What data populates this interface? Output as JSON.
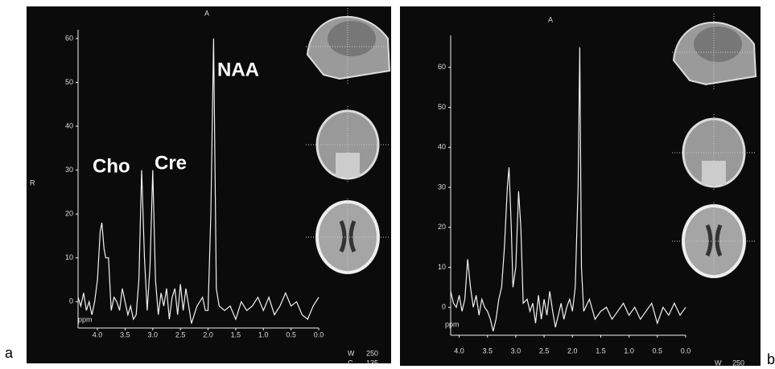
{
  "chart_data": [
    {
      "type": "line",
      "panel_label": "a",
      "color": "#f2f2f2",
      "background": "#0b0b0b",
      "top_label": "A",
      "side_label": "R",
      "x_unit": "ppm",
      "window_label": "W",
      "window_value": 250,
      "center_label": "C",
      "center_value": 135,
      "annotations": [
        "Cho",
        "Cre",
        "NAA"
      ],
      "xlim": [
        4.35,
        0.0
      ],
      "xticks": [
        {
          "value": 4.0,
          "label": "4.0"
        },
        3.5,
        {
          "value": 3.0,
          "label": "3.0"
        },
        2.5,
        {
          "value": 2.0,
          "label": "2.0"
        },
        1.5,
        {
          "value": 1.0,
          "label": "1.0"
        },
        0.5,
        {
          "value": 0.0,
          "label": "0.0"
        }
      ],
      "ylim": [
        -6,
        62
      ],
      "yticks": [
        0,
        10,
        20,
        30,
        40,
        50,
        60
      ],
      "x": [
        4.35,
        4.3,
        4.25,
        4.2,
        4.15,
        4.1,
        4.05,
        4.0,
        3.95,
        3.92,
        3.88,
        3.85,
        3.8,
        3.75,
        3.7,
        3.65,
        3.6,
        3.55,
        3.5,
        3.45,
        3.4,
        3.35,
        3.3,
        3.25,
        3.2,
        3.15,
        3.1,
        3.05,
        3.0,
        2.95,
        2.9,
        2.85,
        2.8,
        2.75,
        2.7,
        2.65,
        2.6,
        2.55,
        2.5,
        2.45,
        2.4,
        2.35,
        2.3,
        2.25,
        2.2,
        2.15,
        2.1,
        2.05,
        2.0,
        1.95,
        1.9,
        1.85,
        1.8,
        1.7,
        1.6,
        1.5,
        1.4,
        1.3,
        1.2,
        1.1,
        1.0,
        0.9,
        0.8,
        0.7,
        0.6,
        0.5,
        0.4,
        0.3,
        0.2,
        0.1,
        0.0
      ],
      "values": [
        1,
        -1,
        2,
        -2,
        0,
        -3,
        0,
        5,
        16,
        18,
        12,
        10,
        10,
        -2,
        1,
        0,
        -2,
        3,
        0,
        -3,
        -1,
        -4,
        -3,
        5,
        30,
        10,
        -2,
        8,
        30,
        5,
        -3,
        2,
        -1,
        3,
        -4,
        1,
        3,
        -3,
        4,
        -2,
        3,
        -1,
        -5,
        -3,
        -1,
        0,
        1,
        -2,
        -2,
        20,
        60,
        3,
        -1,
        -2,
        -1,
        -4,
        0,
        -2,
        -1,
        1,
        -2,
        1,
        -3,
        -1,
        2,
        -1,
        0,
        -3,
        -4,
        -1,
        1
      ]
    },
    {
      "type": "line",
      "panel_label": "b",
      "color": "#f2f2f2",
      "background": "#0b0b0b",
      "top_label": "A",
      "x_unit": "ppm",
      "window_label": "W",
      "window_value": 250,
      "xlim": [
        4.15,
        0.0
      ],
      "xticks": [
        {
          "value": 4.0,
          "label": "4.0"
        },
        3.5,
        {
          "value": 3.0,
          "label": "3.0"
        },
        2.5,
        {
          "value": 2.0,
          "label": "2.0"
        },
        1.5,
        {
          "value": 1.0,
          "label": "1.0"
        },
        0.5,
        {
          "value": 0.0,
          "label": "0.0"
        }
      ],
      "ylim": [
        -7,
        68
      ],
      "yticks": [
        0,
        10,
        20,
        30,
        40,
        50,
        60
      ],
      "x": [
        4.15,
        4.1,
        4.05,
        4.0,
        3.95,
        3.9,
        3.85,
        3.8,
        3.75,
        3.7,
        3.65,
        3.6,
        3.55,
        3.5,
        3.45,
        3.4,
        3.35,
        3.3,
        3.25,
        3.2,
        3.15,
        3.12,
        3.08,
        3.05,
        3.0,
        2.95,
        2.91,
        2.87,
        2.8,
        2.75,
        2.7,
        2.65,
        2.6,
        2.55,
        2.5,
        2.45,
        2.4,
        2.35,
        2.3,
        2.25,
        2.2,
        2.15,
        2.1,
        2.05,
        2.0,
        1.95,
        1.9,
        1.87,
        1.84,
        1.8,
        1.7,
        1.6,
        1.5,
        1.4,
        1.3,
        1.2,
        1.1,
        1.0,
        0.9,
        0.8,
        0.7,
        0.6,
        0.5,
        0.4,
        0.3,
        0.2,
        0.1,
        0.0
      ],
      "values": [
        4,
        1,
        0,
        3,
        -1,
        2,
        12,
        5,
        0,
        3,
        -2,
        2,
        0,
        -1,
        -3,
        -6,
        -3,
        2,
        5,
        15,
        30,
        35,
        20,
        5,
        10,
        29,
        20,
        1,
        2,
        -1,
        1,
        -4,
        3,
        -3,
        2,
        -2,
        4,
        -1,
        -5,
        -2,
        1,
        -3,
        0,
        2,
        -1,
        5,
        30,
        65,
        10,
        -1,
        2,
        -3,
        -1,
        0,
        -3,
        -1,
        1,
        -2,
        0,
        -3,
        -1,
        1,
        -4,
        0,
        -2,
        1,
        -2,
        0
      ]
    }
  ]
}
